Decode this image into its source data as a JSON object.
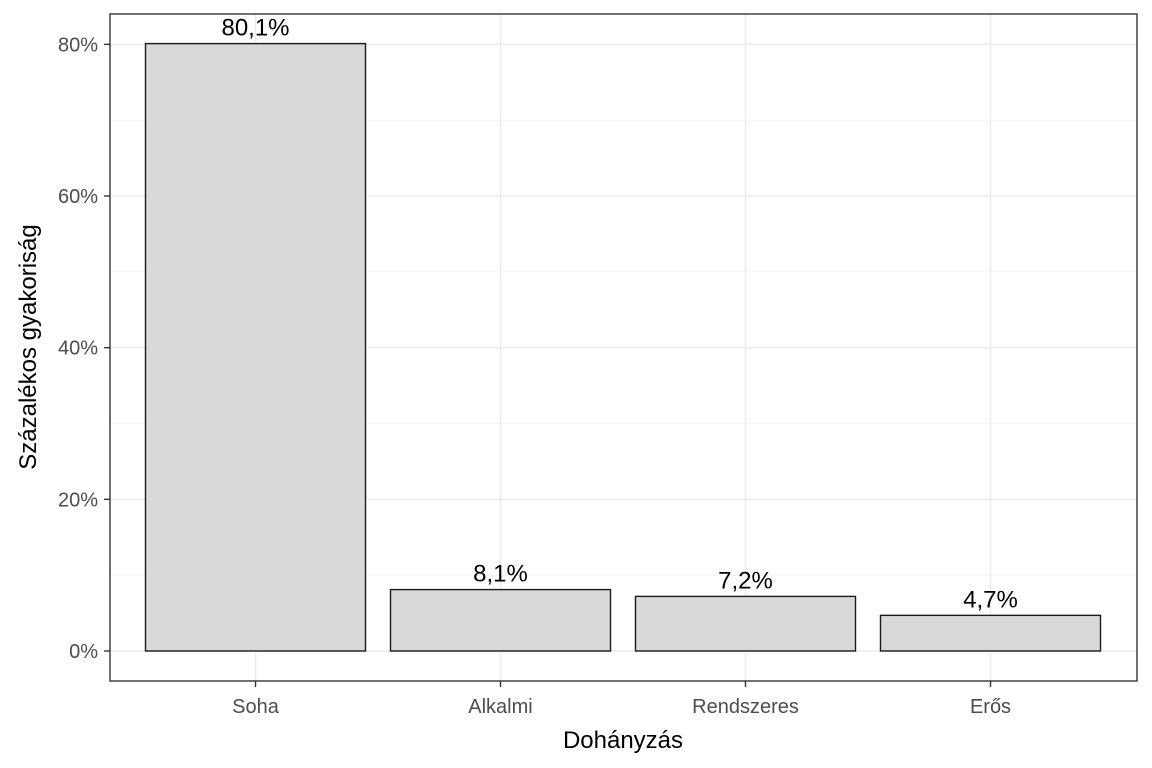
{
  "chart_data": {
    "type": "bar",
    "categories": [
      "Soha",
      "Alkalmi",
      "Rendszeres",
      "Erős"
    ],
    "values": [
      80.1,
      8.1,
      7.2,
      4.7
    ],
    "data_labels": [
      "80,1%",
      "8,1%",
      "7,2%",
      "4,7%"
    ],
    "xlabel": "Dohányzás",
    "ylabel": "Százalékos gyakoriság",
    "ylim": [
      0,
      84
    ],
    "y_ticks": [
      0,
      20,
      40,
      60,
      80
    ],
    "y_tick_labels": [
      "0%",
      "20%",
      "40%",
      "60%",
      "80%"
    ],
    "grid": true,
    "colors": {
      "bar_fill": "#d9d9d9",
      "bar_stroke": "#1a1a1a"
    }
  }
}
